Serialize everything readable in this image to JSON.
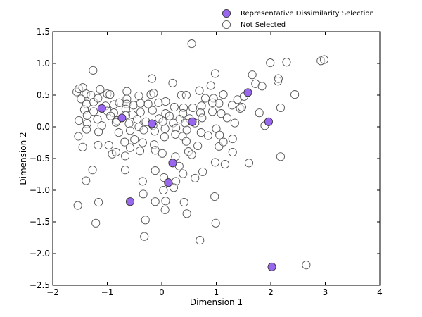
{
  "chart_data": {
    "type": "scatter",
    "title": "",
    "xlabel": "Dimension 1",
    "ylabel": "Dimension 2",
    "xlim": [
      -2,
      4
    ],
    "ylim": [
      -2.5,
      1.5
    ],
    "xticks": [
      "−2",
      "−1",
      "0",
      "1",
      "2",
      "3",
      "4"
    ],
    "yticks": [
      "−2.5",
      "−2.0",
      "−1.5",
      "−1.0",
      "−0.5",
      "0.0",
      "0.5",
      "1.0",
      "1.5"
    ],
    "xtick_values": [
      -2,
      -1,
      0,
      1,
      2,
      3,
      4
    ],
    "ytick_values": [
      -2.5,
      -2.0,
      -1.5,
      -1.0,
      -0.5,
      0.0,
      0.5,
      1.0,
      1.5
    ],
    "grid": false,
    "legend_position": "top-right-outside",
    "colors": {
      "selected": "#9966ee",
      "selected_edge": "#333333",
      "not_selected": "#ffffff",
      "not_selected_edge": "#555555"
    },
    "series": [
      {
        "name": "Representative Dissimilarity Selection",
        "points": [
          [
            -1.1,
            0.29
          ],
          [
            -0.73,
            0.14
          ],
          [
            -0.18,
            0.05
          ],
          [
            0.56,
            0.08
          ],
          [
            1.58,
            0.54
          ],
          [
            1.96,
            0.08
          ],
          [
            0.2,
            -0.57
          ],
          [
            0.12,
            -0.88
          ],
          [
            -0.58,
            -1.18
          ],
          [
            2.02,
            -2.21
          ]
        ]
      },
      {
        "name": "Not Selected",
        "points": [
          [
            0.55,
            1.31
          ],
          [
            1.99,
            1.01
          ],
          [
            2.29,
            1.02
          ],
          [
            2.92,
            1.04
          ],
          [
            2.98,
            1.06
          ],
          [
            -1.26,
            0.89
          ],
          [
            0.98,
            0.84
          ],
          [
            1.66,
            0.82
          ],
          [
            2.13,
            0.72
          ],
          [
            2.14,
            0.76
          ],
          [
            1.72,
            0.68
          ],
          [
            0.9,
            0.65
          ],
          [
            0.2,
            0.69
          ],
          [
            -0.18,
            0.76
          ],
          [
            -1.56,
            0.55
          ],
          [
            -1.52,
            0.6
          ],
          [
            -1.45,
            0.62
          ],
          [
            -1.39,
            0.52
          ],
          [
            -1.3,
            0.5
          ],
          [
            -1.13,
            0.59
          ],
          [
            -1.0,
            0.52
          ],
          [
            -0.95,
            0.51
          ],
          [
            -0.64,
            0.56
          ],
          [
            -0.64,
            0.44
          ],
          [
            -0.42,
            0.49
          ],
          [
            -0.2,
            0.51
          ],
          [
            -0.15,
            0.53
          ],
          [
            0.36,
            0.5
          ],
          [
            0.45,
            0.5
          ],
          [
            0.69,
            0.57
          ],
          [
            0.8,
            0.45
          ],
          [
            0.95,
            0.45
          ],
          [
            1.13,
            0.51
          ],
          [
            1.39,
            0.43
          ],
          [
            1.51,
            0.48
          ],
          [
            1.84,
            0.64
          ],
          [
            2.44,
            0.51
          ],
          [
            -1.48,
            0.44
          ],
          [
            -1.38,
            0.36
          ],
          [
            -1.25,
            0.39
          ],
          [
            -1.17,
            0.45
          ],
          [
            -1.03,
            0.33
          ],
          [
            -0.88,
            0.35
          ],
          [
            -0.78,
            0.38
          ],
          [
            -0.64,
            0.36
          ],
          [
            -0.52,
            0.34
          ],
          [
            -0.39,
            0.37
          ],
          [
            -0.25,
            0.36
          ],
          [
            -0.06,
            0.38
          ],
          [
            0.07,
            0.4
          ],
          [
            0.23,
            0.31
          ],
          [
            0.4,
            0.3
          ],
          [
            0.57,
            0.3
          ],
          [
            0.73,
            0.33
          ],
          [
            0.93,
            0.38
          ],
          [
            1.05,
            0.37
          ],
          [
            1.29,
            0.34
          ],
          [
            1.44,
            0.29
          ],
          [
            -1.42,
            0.27
          ],
          [
            -1.25,
            0.24
          ],
          [
            -1.0,
            0.25
          ],
          [
            -0.88,
            0.22
          ],
          [
            -0.66,
            0.28
          ],
          [
            -0.54,
            0.19
          ],
          [
            -0.39,
            0.23
          ],
          [
            -0.17,
            0.26
          ],
          [
            0.07,
            0.21
          ],
          [
            0.39,
            0.21
          ],
          [
            0.71,
            0.22
          ],
          [
            0.93,
            0.24
          ],
          [
            1.09,
            0.21
          ],
          [
            1.2,
            0.14
          ],
          [
            1.47,
            0.31
          ],
          [
            1.79,
            0.22
          ],
          [
            2.18,
            0.3
          ],
          [
            -1.37,
            0.18
          ],
          [
            -1.18,
            0.12
          ],
          [
            -0.94,
            0.17
          ],
          [
            -0.82,
            0.1
          ],
          [
            -0.66,
            0.18
          ],
          [
            -0.45,
            0.12
          ],
          [
            -0.29,
            0.08
          ],
          [
            -0.05,
            0.13
          ],
          [
            0.14,
            0.17
          ],
          [
            0.33,
            0.12
          ],
          [
            0.51,
            0.13
          ],
          [
            0.74,
            0.14
          ],
          [
            1.34,
            0.06
          ],
          [
            -1.52,
            0.1
          ],
          [
            -1.37,
            0.05
          ],
          [
            -1.1,
            0.02
          ],
          [
            -0.84,
            0.07
          ],
          [
            -0.6,
            0.05
          ],
          [
            -0.42,
            0.0
          ],
          [
            -0.16,
            0.02
          ],
          [
            0.02,
            0.08
          ],
          [
            0.21,
            0.06
          ],
          [
            0.43,
            0.06
          ],
          [
            0.61,
            0.06
          ],
          [
            1.89,
            0.02
          ],
          [
            -1.38,
            -0.04
          ],
          [
            -1.16,
            -0.08
          ],
          [
            -0.79,
            -0.09
          ],
          [
            -0.58,
            -0.06
          ],
          [
            -0.33,
            -0.05
          ],
          [
            -0.13,
            -0.07
          ],
          [
            0.06,
            -0.03
          ],
          [
            0.26,
            -0.02
          ],
          [
            0.46,
            -0.05
          ],
          [
            0.72,
            -0.09
          ],
          [
            0.85,
            -0.14
          ],
          [
            1.0,
            -0.03
          ],
          [
            1.06,
            -0.13
          ],
          [
            -1.53,
            -0.15
          ],
          [
            -1.17,
            -0.29
          ],
          [
            -0.97,
            -0.29
          ],
          [
            -0.68,
            -0.24
          ],
          [
            -0.5,
            -0.2
          ],
          [
            -0.35,
            -0.25
          ],
          [
            -0.14,
            -0.28
          ],
          [
            0.05,
            -0.16
          ],
          [
            0.25,
            -0.12
          ],
          [
            0.38,
            -0.15
          ],
          [
            0.45,
            -0.23
          ],
          [
            0.66,
            -0.3
          ],
          [
            1.05,
            -0.31
          ],
          [
            1.13,
            -0.24
          ],
          [
            1.3,
            -0.19
          ],
          [
            -1.45,
            -0.32
          ],
          [
            -0.91,
            -0.43
          ],
          [
            -0.84,
            -0.4
          ],
          [
            -0.67,
            -0.46
          ],
          [
            -0.58,
            -0.33
          ],
          [
            -0.4,
            -0.38
          ],
          [
            -0.12,
            -0.37
          ],
          [
            0.01,
            -0.42
          ],
          [
            0.25,
            -0.47
          ],
          [
            0.49,
            -0.39
          ],
          [
            0.55,
            -0.44
          ],
          [
            1.3,
            -0.4
          ],
          [
            0.98,
            -0.56
          ],
          [
            1.16,
            -0.59
          ],
          [
            1.6,
            -0.57
          ],
          [
            2.18,
            -0.47
          ],
          [
            -1.27,
            -0.68
          ],
          [
            -0.67,
            -0.68
          ],
          [
            -0.12,
            -0.69
          ],
          [
            0.32,
            -0.62
          ],
          [
            0.39,
            -0.74
          ],
          [
            0.75,
            -0.71
          ],
          [
            -1.39,
            -0.85
          ],
          [
            -0.35,
            -0.86
          ],
          [
            0.04,
            -0.8
          ],
          [
            0.26,
            -0.86
          ],
          [
            0.61,
            -0.81
          ],
          [
            0.03,
            -1.0
          ],
          [
            0.22,
            -0.96
          ],
          [
            -0.34,
            -1.06
          ],
          [
            0.97,
            -1.1
          ],
          [
            -1.16,
            -1.19
          ],
          [
            -1.54,
            -1.24
          ],
          [
            -0.12,
            -1.18
          ],
          [
            0.07,
            -1.17
          ],
          [
            0.41,
            -1.19
          ],
          [
            0.06,
            -1.31
          ],
          [
            0.46,
            -1.37
          ],
          [
            -0.3,
            -1.47
          ],
          [
            -1.21,
            -1.52
          ],
          [
            0.99,
            -1.52
          ],
          [
            -0.32,
            -1.73
          ],
          [
            0.7,
            -1.79
          ],
          [
            2.65,
            -2.18
          ]
        ]
      }
    ]
  }
}
